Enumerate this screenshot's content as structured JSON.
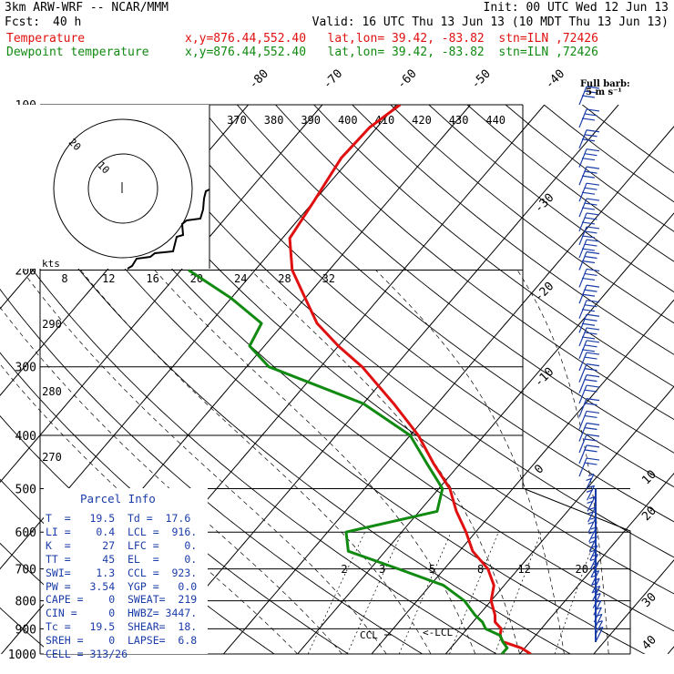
{
  "header": {
    "model": "3km ARW-WRF -- NCAR/MMM",
    "init": "Init: 00 UTC Wed 12 Jun 13",
    "fcst_label": "Fcst:",
    "fcst_value": "40 h",
    "valid": "Valid: 16 UTC Thu 13 Jun 13 (10 MDT Thu 13 Jun 13)",
    "temp_label": "Temperature",
    "temp_loc": "x,y=876.44,552.40   lat,lon= 39.42, -83.82  stn=ILN ,72426",
    "dew_label": "Dewpoint temperature",
    "dew_loc": "x,y=876.44,552.40   lat,lon= 39.42, -83.82  stn=ILN ,72426"
  },
  "colors": {
    "temperature": "#e01010",
    "dewpoint": "#108a10",
    "axes": "#000000"
  },
  "full_barb_label": "Full barb:",
  "full_barb_value": "5 m s⁻¹",
  "hodograph": {
    "units": "kts",
    "ring_labels": [
      "20",
      "10"
    ],
    "speed_ticks": [
      "8",
      "12",
      "16",
      "20",
      "24",
      "28",
      "32"
    ]
  },
  "theta_labels": [
    "370",
    "380",
    "390",
    "400",
    "410",
    "420",
    "430",
    "440"
  ],
  "theta_left_labels": [
    "290",
    "280",
    "270"
  ],
  "mixing_ratio_labels": [
    "2",
    "3",
    "5",
    "8",
    "12",
    "20"
  ],
  "parcel": {
    "title": "Parcel Info",
    "rows": [
      "T  =   19.5  Td =  17.6",
      "LI =    0.4  LCL =  916.",
      "K  =     27  LFC =    0.",
      "TT =     45  EL  =    0.",
      "SWI=    1.3  CCL =  923.",
      "PW =   3.54  YGP =   0.0",
      "CAPE =    0  SWEAT=  219",
      "CIN =     0  HWBZ= 3447.",
      "Tc =   19.5  SHEAR=  18.",
      "SREH =    0  LAPSE=  6.8",
      "CELL = 313/26"
    ]
  },
  "markers": {
    "ccl": "CCL",
    "lcl": "<-LCL"
  },
  "chart_data": {
    "type": "line",
    "title": "",
    "xlabel": "",
    "ylabel": "",
    "y_scale": "log pressure (hPa)",
    "ylim": [
      1000,
      100
    ],
    "pressure_ticks": [
      100,
      200,
      300,
      400,
      500,
      600,
      700,
      800,
      900,
      1000
    ],
    "isotherm_labels": [
      -80,
      -70,
      -60,
      -50,
      -40,
      -30,
      -20,
      -10,
      0,
      10,
      20,
      30,
      40
    ],
    "series": [
      {
        "name": "Temperature",
        "color": "#e01010",
        "points": [
          [
            1000,
            21.5
          ],
          [
            975,
            19.5
          ],
          [
            950,
            16.3
          ],
          [
            925,
            15.2
          ],
          [
            900,
            14.6
          ],
          [
            875,
            13.0
          ],
          [
            850,
            12.2
          ],
          [
            800,
            10.0
          ],
          [
            750,
            8.6
          ],
          [
            700,
            5.9
          ],
          [
            650,
            1.8
          ],
          [
            600,
            -1.3
          ],
          [
            550,
            -5.0
          ],
          [
            500,
            -8.5
          ],
          [
            450,
            -13.6
          ],
          [
            400,
            -18.9
          ],
          [
            350,
            -25.9
          ],
          [
            300,
            -34.4
          ],
          [
            275,
            -40.0
          ],
          [
            250,
            -45.5
          ],
          [
            225,
            -50.0
          ],
          [
            200,
            -55.0
          ],
          [
            175,
            -59.0
          ],
          [
            150,
            -60.0
          ],
          [
            125,
            -61.3
          ],
          [
            110,
            -61.0
          ],
          [
            100,
            -59.5
          ]
        ]
      },
      {
        "name": "Dewpoint temperature",
        "color": "#108a10",
        "points": [
          [
            1000,
            17.6
          ],
          [
            975,
            17.6
          ],
          [
            950,
            16.3
          ],
          [
            925,
            15.2
          ],
          [
            900,
            12.5
          ],
          [
            875,
            11.3
          ],
          [
            850,
            9.5
          ],
          [
            800,
            6.4
          ],
          [
            750,
            1.8
          ],
          [
            700,
            -6.2
          ],
          [
            650,
            -15.0
          ],
          [
            600,
            -17.5
          ],
          [
            550,
            -7.6
          ],
          [
            500,
            -9.5
          ],
          [
            450,
            -14.5
          ],
          [
            400,
            -20.0
          ],
          [
            350,
            -30.0
          ],
          [
            300,
            -47.0
          ],
          [
            275,
            -52.0
          ],
          [
            250,
            -53.0
          ],
          [
            225,
            -60.0
          ],
          [
            200,
            -69.0
          ]
        ]
      }
    ],
    "grid": true
  }
}
